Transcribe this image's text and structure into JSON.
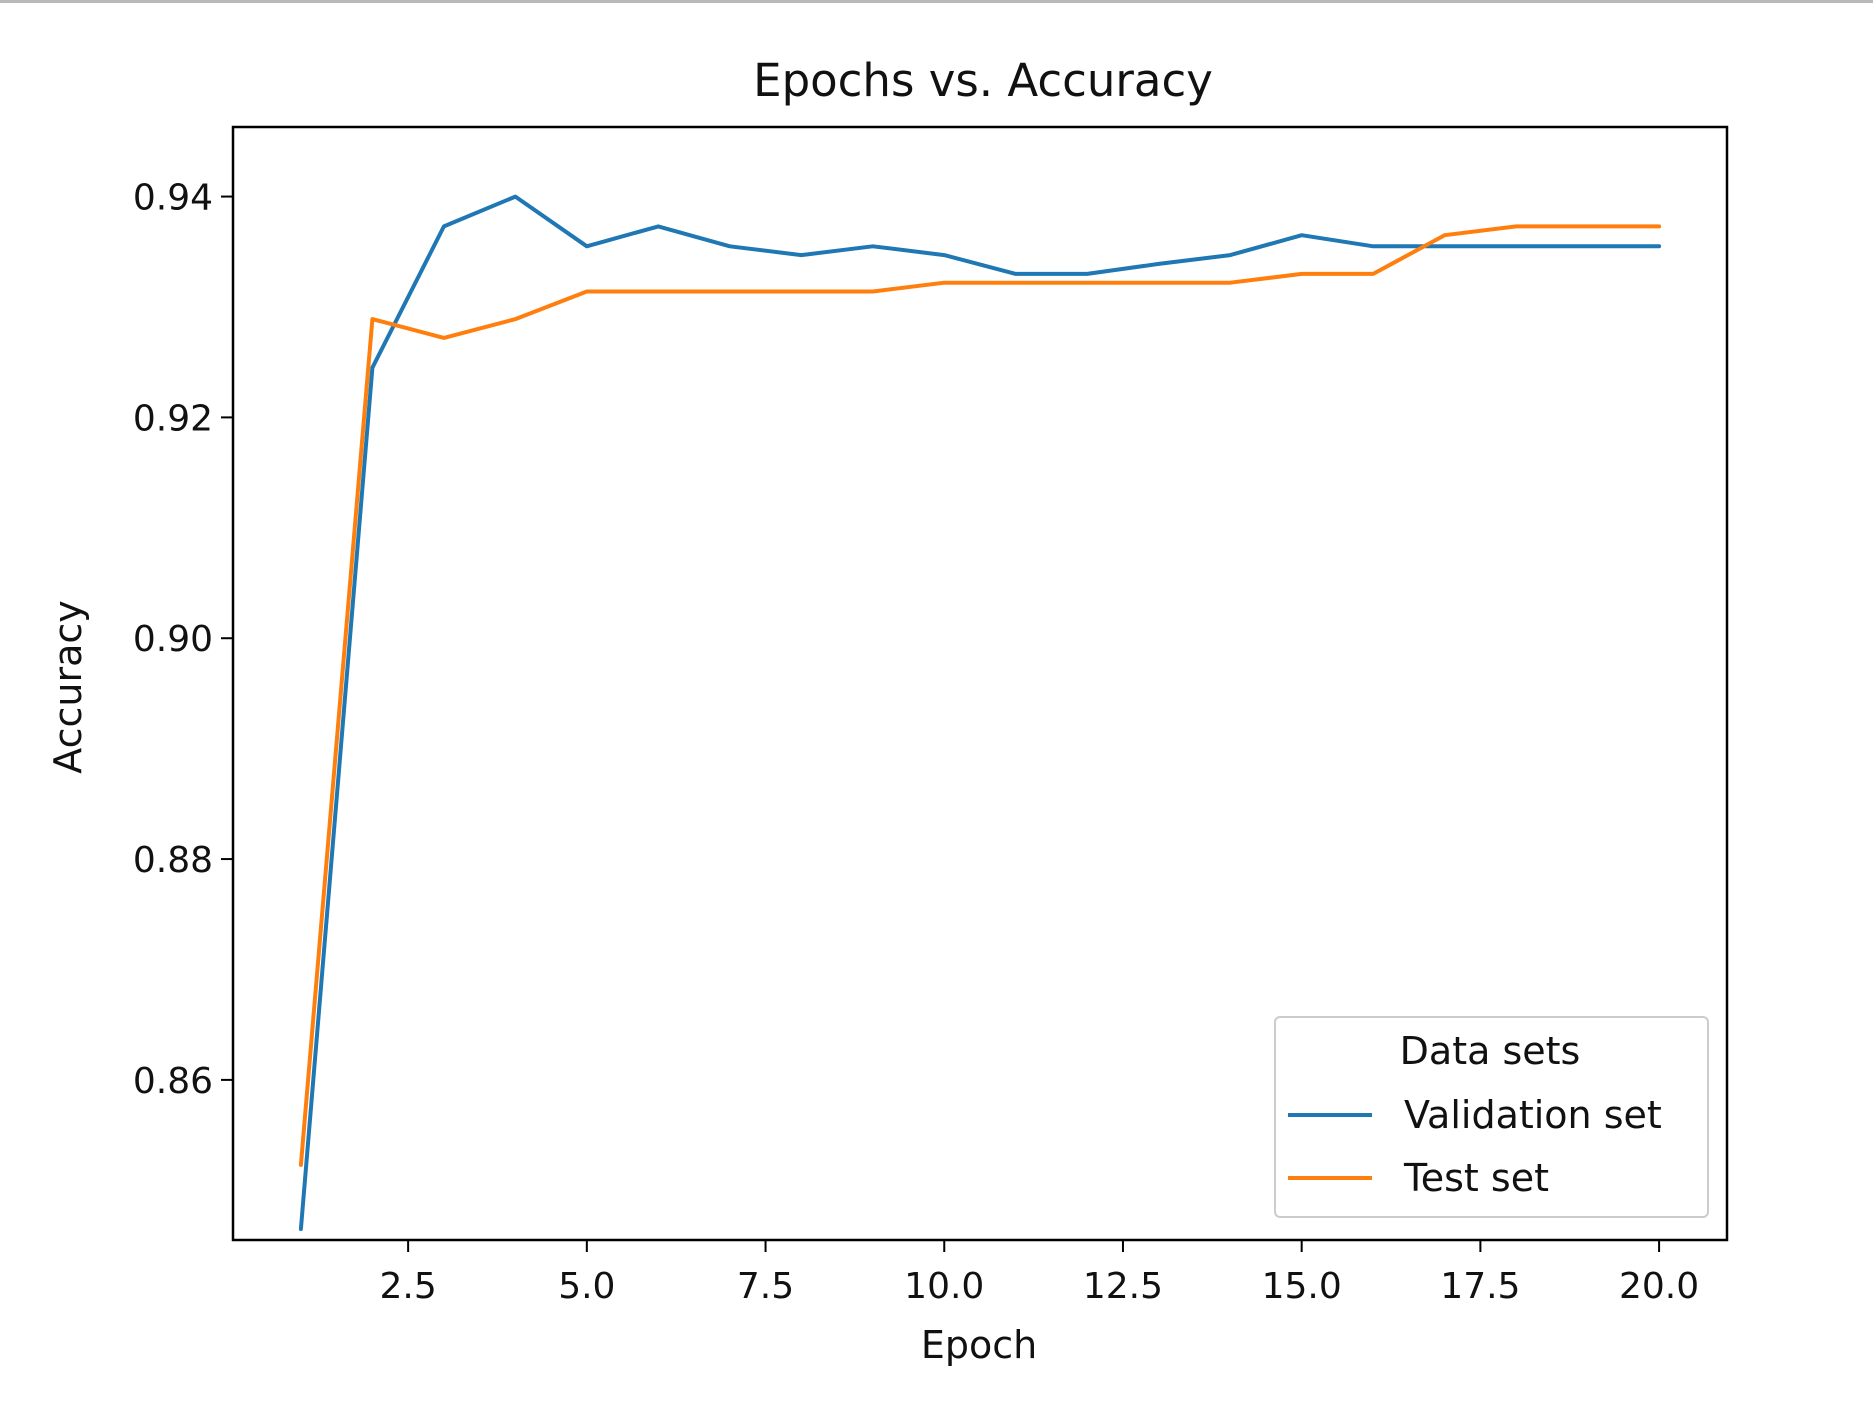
{
  "chart_data": {
    "type": "line",
    "title": "Epochs vs. Accuracy",
    "xlabel": "Epoch",
    "ylabel": "Accuracy",
    "xlim": [
      0.05,
      20.95
    ],
    "ylim": [
      0.8455,
      0.9463
    ],
    "xticks": [
      2.5,
      5.0,
      7.5,
      10.0,
      12.5,
      15.0,
      17.5,
      20.0
    ],
    "xtick_labels": [
      "2.5",
      "5.0",
      "7.5",
      "10.0",
      "12.5",
      "15.0",
      "17.5",
      "20.0"
    ],
    "yticks": [
      0.86,
      0.88,
      0.9,
      0.92,
      0.94
    ],
    "ytick_labels": [
      "0.86",
      "0.88",
      "0.90",
      "0.92",
      "0.94"
    ],
    "grid": false,
    "legend": {
      "title": "Data sets",
      "position": "lower-right"
    },
    "x": [
      1,
      2,
      3,
      4,
      5,
      6,
      7,
      8,
      9,
      10,
      11,
      12,
      13,
      14,
      15,
      16,
      17,
      18,
      19,
      20
    ],
    "series": [
      {
        "name": "Validation set",
        "color": "#1f77b4",
        "values": [
          0.8465,
          0.9245,
          0.9373,
          0.94,
          0.9355,
          0.9373,
          0.9355,
          0.9347,
          0.9355,
          0.9347,
          0.933,
          0.933,
          0.9339,
          0.9347,
          0.9365,
          0.9355,
          0.9355,
          0.9355,
          0.9355,
          0.9355
        ]
      },
      {
        "name": "Test set",
        "color": "#ff7f0e",
        "values": [
          0.8523,
          0.9289,
          0.9272,
          0.9289,
          0.9314,
          0.9314,
          0.9314,
          0.9314,
          0.9314,
          0.9322,
          0.9322,
          0.9322,
          0.9322,
          0.9322,
          0.933,
          0.933,
          0.9365,
          0.9373,
          0.9373,
          0.9373
        ]
      }
    ]
  }
}
